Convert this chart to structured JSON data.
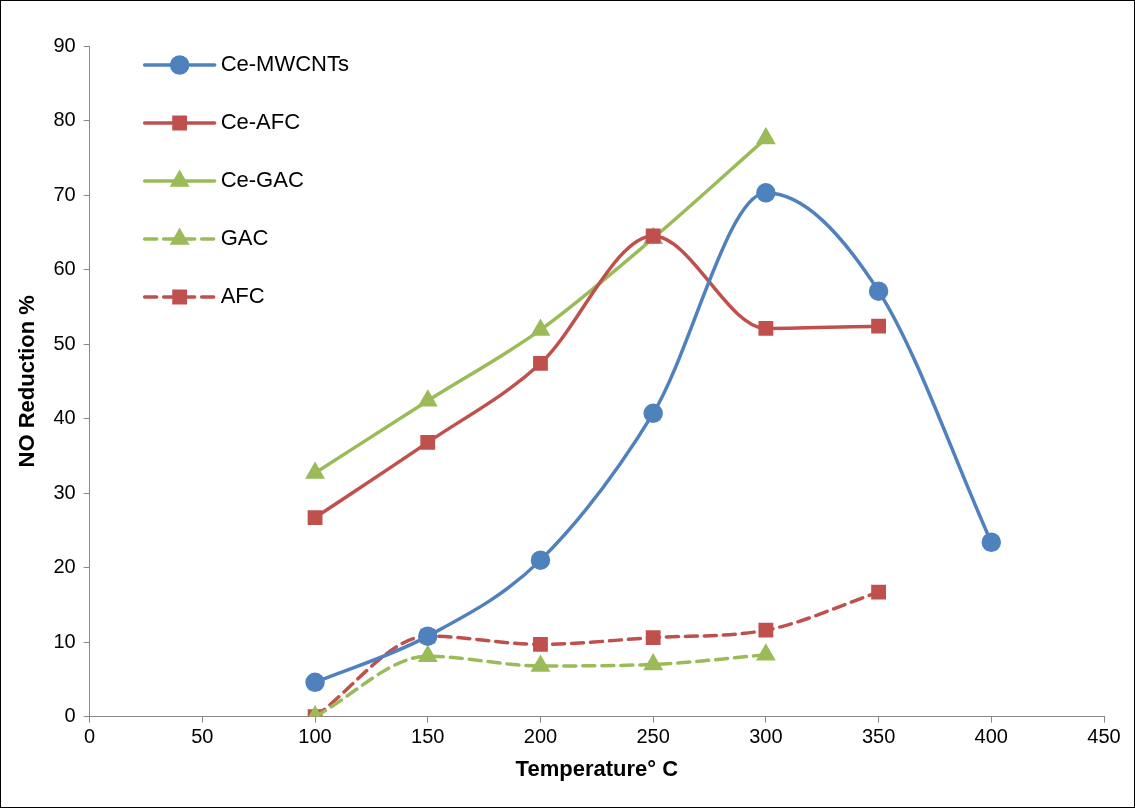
{
  "chart_data": {
    "type": "line",
    "xlabel": "Temperature° C",
    "ylabel": "NO Reduction %",
    "xlim": [
      0,
      450
    ],
    "xticks": [
      0,
      50,
      100,
      150,
      200,
      250,
      300,
      350,
      400,
      450
    ],
    "ylim": [
      0,
      90
    ],
    "yticks": [
      0,
      10,
      20,
      30,
      40,
      50,
      60,
      70,
      80,
      90
    ],
    "grid": false,
    "legend": "top left",
    "series": [
      {
        "name": "Ce-MWCNTs",
        "color": "#4f81bd",
        "marker": "circle",
        "line_style": "solid",
        "x": [
          100,
          150,
          200,
          250,
          300,
          350,
          400
        ],
        "values": [
          4.6,
          10.8,
          21.0,
          40.7,
          70.3,
          57.1,
          23.4
        ]
      },
      {
        "name": "Ce-AFC",
        "color": "#c0504d",
        "marker": "square",
        "line_style": "solid",
        "x": [
          100,
          150,
          200,
          250,
          300,
          350
        ],
        "values": [
          26.7,
          36.8,
          47.4,
          64.5,
          52.1,
          52.4
        ]
      },
      {
        "name": "Ce-GAC",
        "color": "#9bbb59",
        "marker": "triangle",
        "line_style": "solid",
        "x": [
          100,
          150,
          200,
          250,
          300
        ],
        "values": [
          32.7,
          42.4,
          51.9,
          64.2,
          77.6
        ]
      },
      {
        "name": "GAC",
        "color": "#9bbb59",
        "marker": "triangle",
        "line_style": "dashed",
        "x": [
          100,
          150,
          200,
          250,
          300
        ],
        "values": [
          0,
          8.1,
          6.8,
          7.0,
          8.3
        ]
      },
      {
        "name": "AFC",
        "color": "#c0504d",
        "marker": "square",
        "line_style": "dashed",
        "x": [
          100,
          150,
          200,
          250,
          300,
          350
        ],
        "values": [
          0,
          10.8,
          9.7,
          10.6,
          11.6,
          16.7
        ]
      }
    ]
  }
}
